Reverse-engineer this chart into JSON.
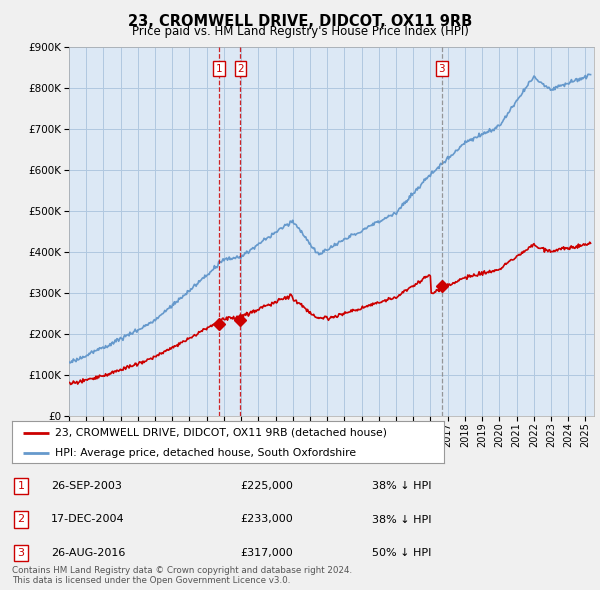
{
  "title": "23, CROMWELL DRIVE, DIDCOT, OX11 9RB",
  "subtitle": "Price paid vs. HM Land Registry's House Price Index (HPI)",
  "ylim": [
    0,
    900000
  ],
  "yticks": [
    0,
    100000,
    200000,
    300000,
    400000,
    500000,
    600000,
    700000,
    800000,
    900000
  ],
  "ytick_labels": [
    "£0",
    "£100K",
    "£200K",
    "£300K",
    "£400K",
    "£500K",
    "£600K",
    "£700K",
    "£800K",
    "£900K"
  ],
  "bg_color": "#f0f0f0",
  "plot_bg_color": "#dce8f5",
  "grid_color": "#b0c8e0",
  "hpi_color": "#6699cc",
  "house_color": "#cc0000",
  "transactions": [
    {
      "num": 1,
      "date_str": "26-SEP-2003",
      "date_x": 2003.73,
      "price": 225000,
      "pct": "38%",
      "dir": "↓",
      "line_style": "--",
      "line_color": "#cc0000"
    },
    {
      "num": 2,
      "date_str": "17-DEC-2004",
      "date_x": 2004.96,
      "price": 233000,
      "pct": "38%",
      "dir": "↓",
      "line_style": "--",
      "line_color": "#cc0000"
    },
    {
      "num": 3,
      "date_str": "26-AUG-2016",
      "date_x": 2016.65,
      "price": 317000,
      "pct": "50%",
      "dir": "↓",
      "line_style": "--",
      "line_color": "#888888"
    }
  ],
  "legend_house_label": "23, CROMWELL DRIVE, DIDCOT, OX11 9RB (detached house)",
  "legend_hpi_label": "HPI: Average price, detached house, South Oxfordshire",
  "footnote": "Contains HM Land Registry data © Crown copyright and database right 2024.\nThis data is licensed under the Open Government Licence v3.0.",
  "xlim_start": 1995,
  "xlim_end": 2025.5
}
